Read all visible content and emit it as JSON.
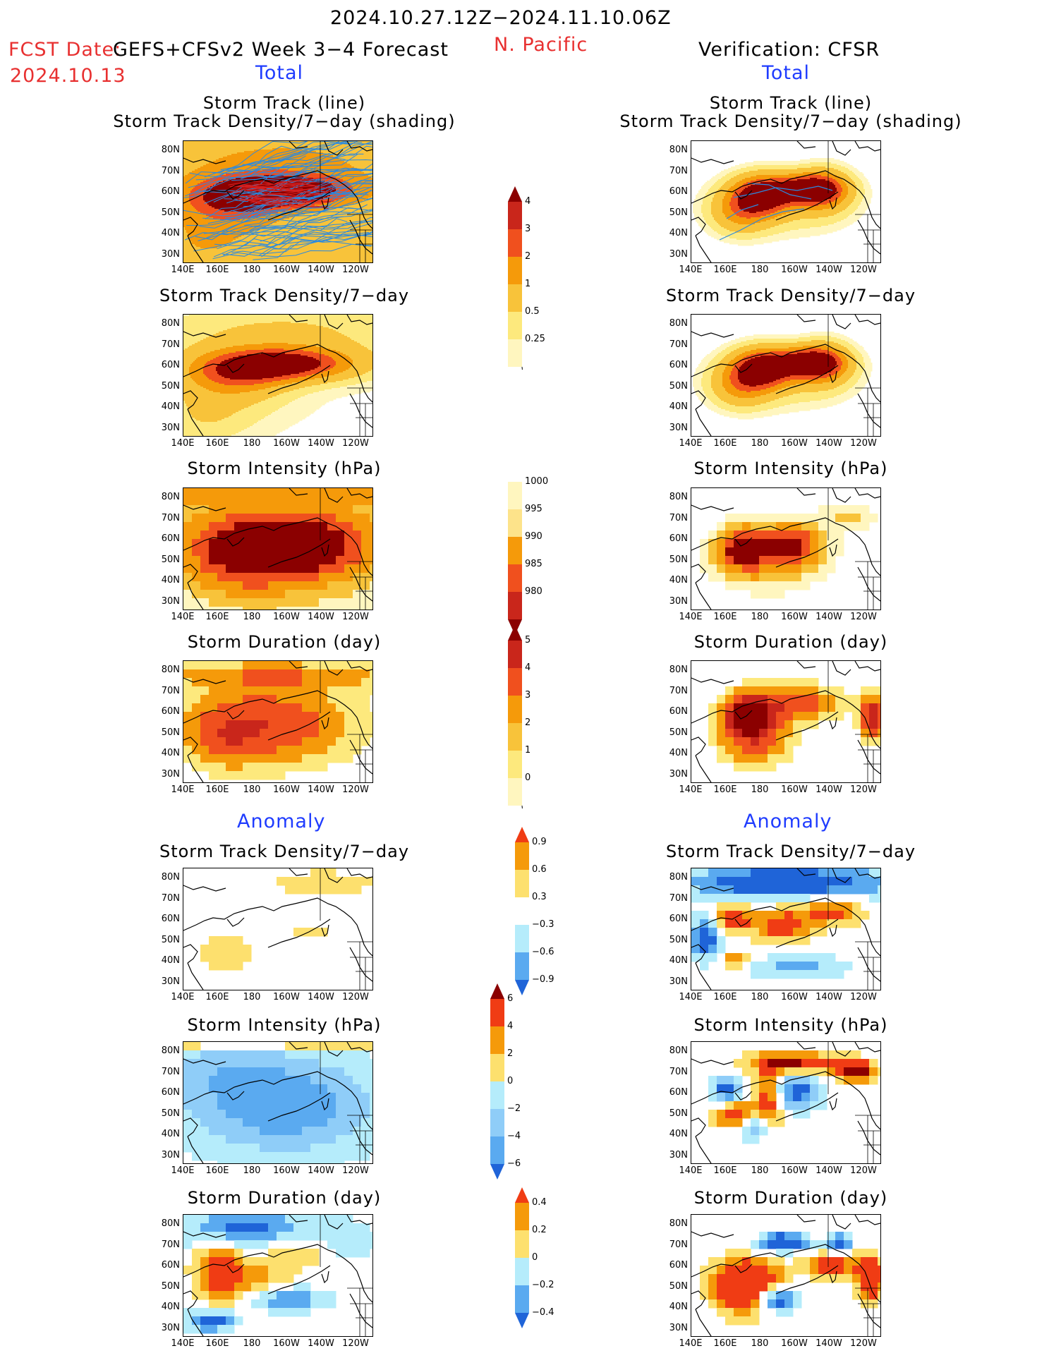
{
  "header": {
    "date_range": "2024.10.27.12Z−2024.11.10.06Z",
    "fcst_label": "FCST Date:",
    "fcst_model": "GEFS+CFSv2 Week 3−4 Forecast",
    "fcst_date": "2024.10.13",
    "region": "N. Pacific",
    "verification": "Verification: CFSR",
    "total_left": "Total",
    "total_right": "Total",
    "anomaly_left": "Anomaly",
    "anomaly_right": "Anomaly"
  },
  "panel_titles": {
    "track_line": "Storm Track (line)",
    "track_shading": "Storm Track Density/7−day (shading)",
    "density": "Storm Track Density/7−day",
    "intensity": "Storm Intensity (hPa)",
    "duration": "Storm Duration (day)"
  },
  "axes": {
    "lat_ticks": [
      "80N",
      "70N",
      "60N",
      "50N",
      "40N",
      "30N"
    ],
    "lon_ticks": [
      "140E",
      "160E",
      "180",
      "160W",
      "140W",
      "120W"
    ]
  },
  "colorbars": {
    "density_total": {
      "labels": [
        "4",
        "3",
        "2",
        "1",
        "0.5",
        "0.25"
      ],
      "colors": [
        "#8b0000",
        "#c9261b",
        "#f0501e",
        "#f59a0a",
        "#f8c33a",
        "#fde97d",
        "#fff6bf"
      ]
    },
    "intensity_total": {
      "labels": [
        "1000",
        "995",
        "990",
        "985",
        "980"
      ],
      "colors": [
        "#fff6bf",
        "#fde38a",
        "#f59a0a",
        "#f0501e",
        "#c9261b",
        "#8b0000"
      ]
    },
    "duration_total": {
      "labels": [
        "5",
        "4",
        "3",
        "2",
        "1",
        "0"
      ],
      "colors": [
        "#8b0000",
        "#c9261b",
        "#f0501e",
        "#f59a0a",
        "#f8c33a",
        "#fde97d",
        "#fff6bf"
      ]
    },
    "density_anom": {
      "labels": [
        "0.9",
        "0.6",
        "0.3",
        "−0.3",
        "−0.6",
        "−0.9"
      ],
      "colors": [
        "#f03c14",
        "#f59a0a",
        "#fde06e",
        "#ffffff",
        "#b5ecfb",
        "#5aaaf0",
        "#1f64d8"
      ]
    },
    "intensity_anom": {
      "labels": [
        "6",
        "4",
        "2",
        "0",
        "−2",
        "−4",
        "−6"
      ],
      "colors": [
        "#8b0000",
        "#f03c14",
        "#f59a0a",
        "#fde06e",
        "#b5ecfb",
        "#8fcdf8",
        "#5aaaf0",
        "#1f64d8"
      ]
    },
    "duration_anom": {
      "labels": [
        "0.4",
        "0.2",
        "0",
        "−0.2",
        "−0.4"
      ],
      "colors": [
        "#f03c14",
        "#f59a0a",
        "#fde06e",
        "#b5ecfb",
        "#5aaaf0",
        "#1f64d8"
      ]
    }
  },
  "palette": {
    "track_line": "#2b8ae0",
    "coast": "#000000",
    "warm": [
      "#fff6bf",
      "#fde97d",
      "#f8c33a",
      "#f59a0a",
      "#f0501e",
      "#c9261b",
      "#8b0000"
    ],
    "cool": [
      "#ffffff",
      "#b5ecfb",
      "#5aaaf0",
      "#1f64d8"
    ]
  }
}
